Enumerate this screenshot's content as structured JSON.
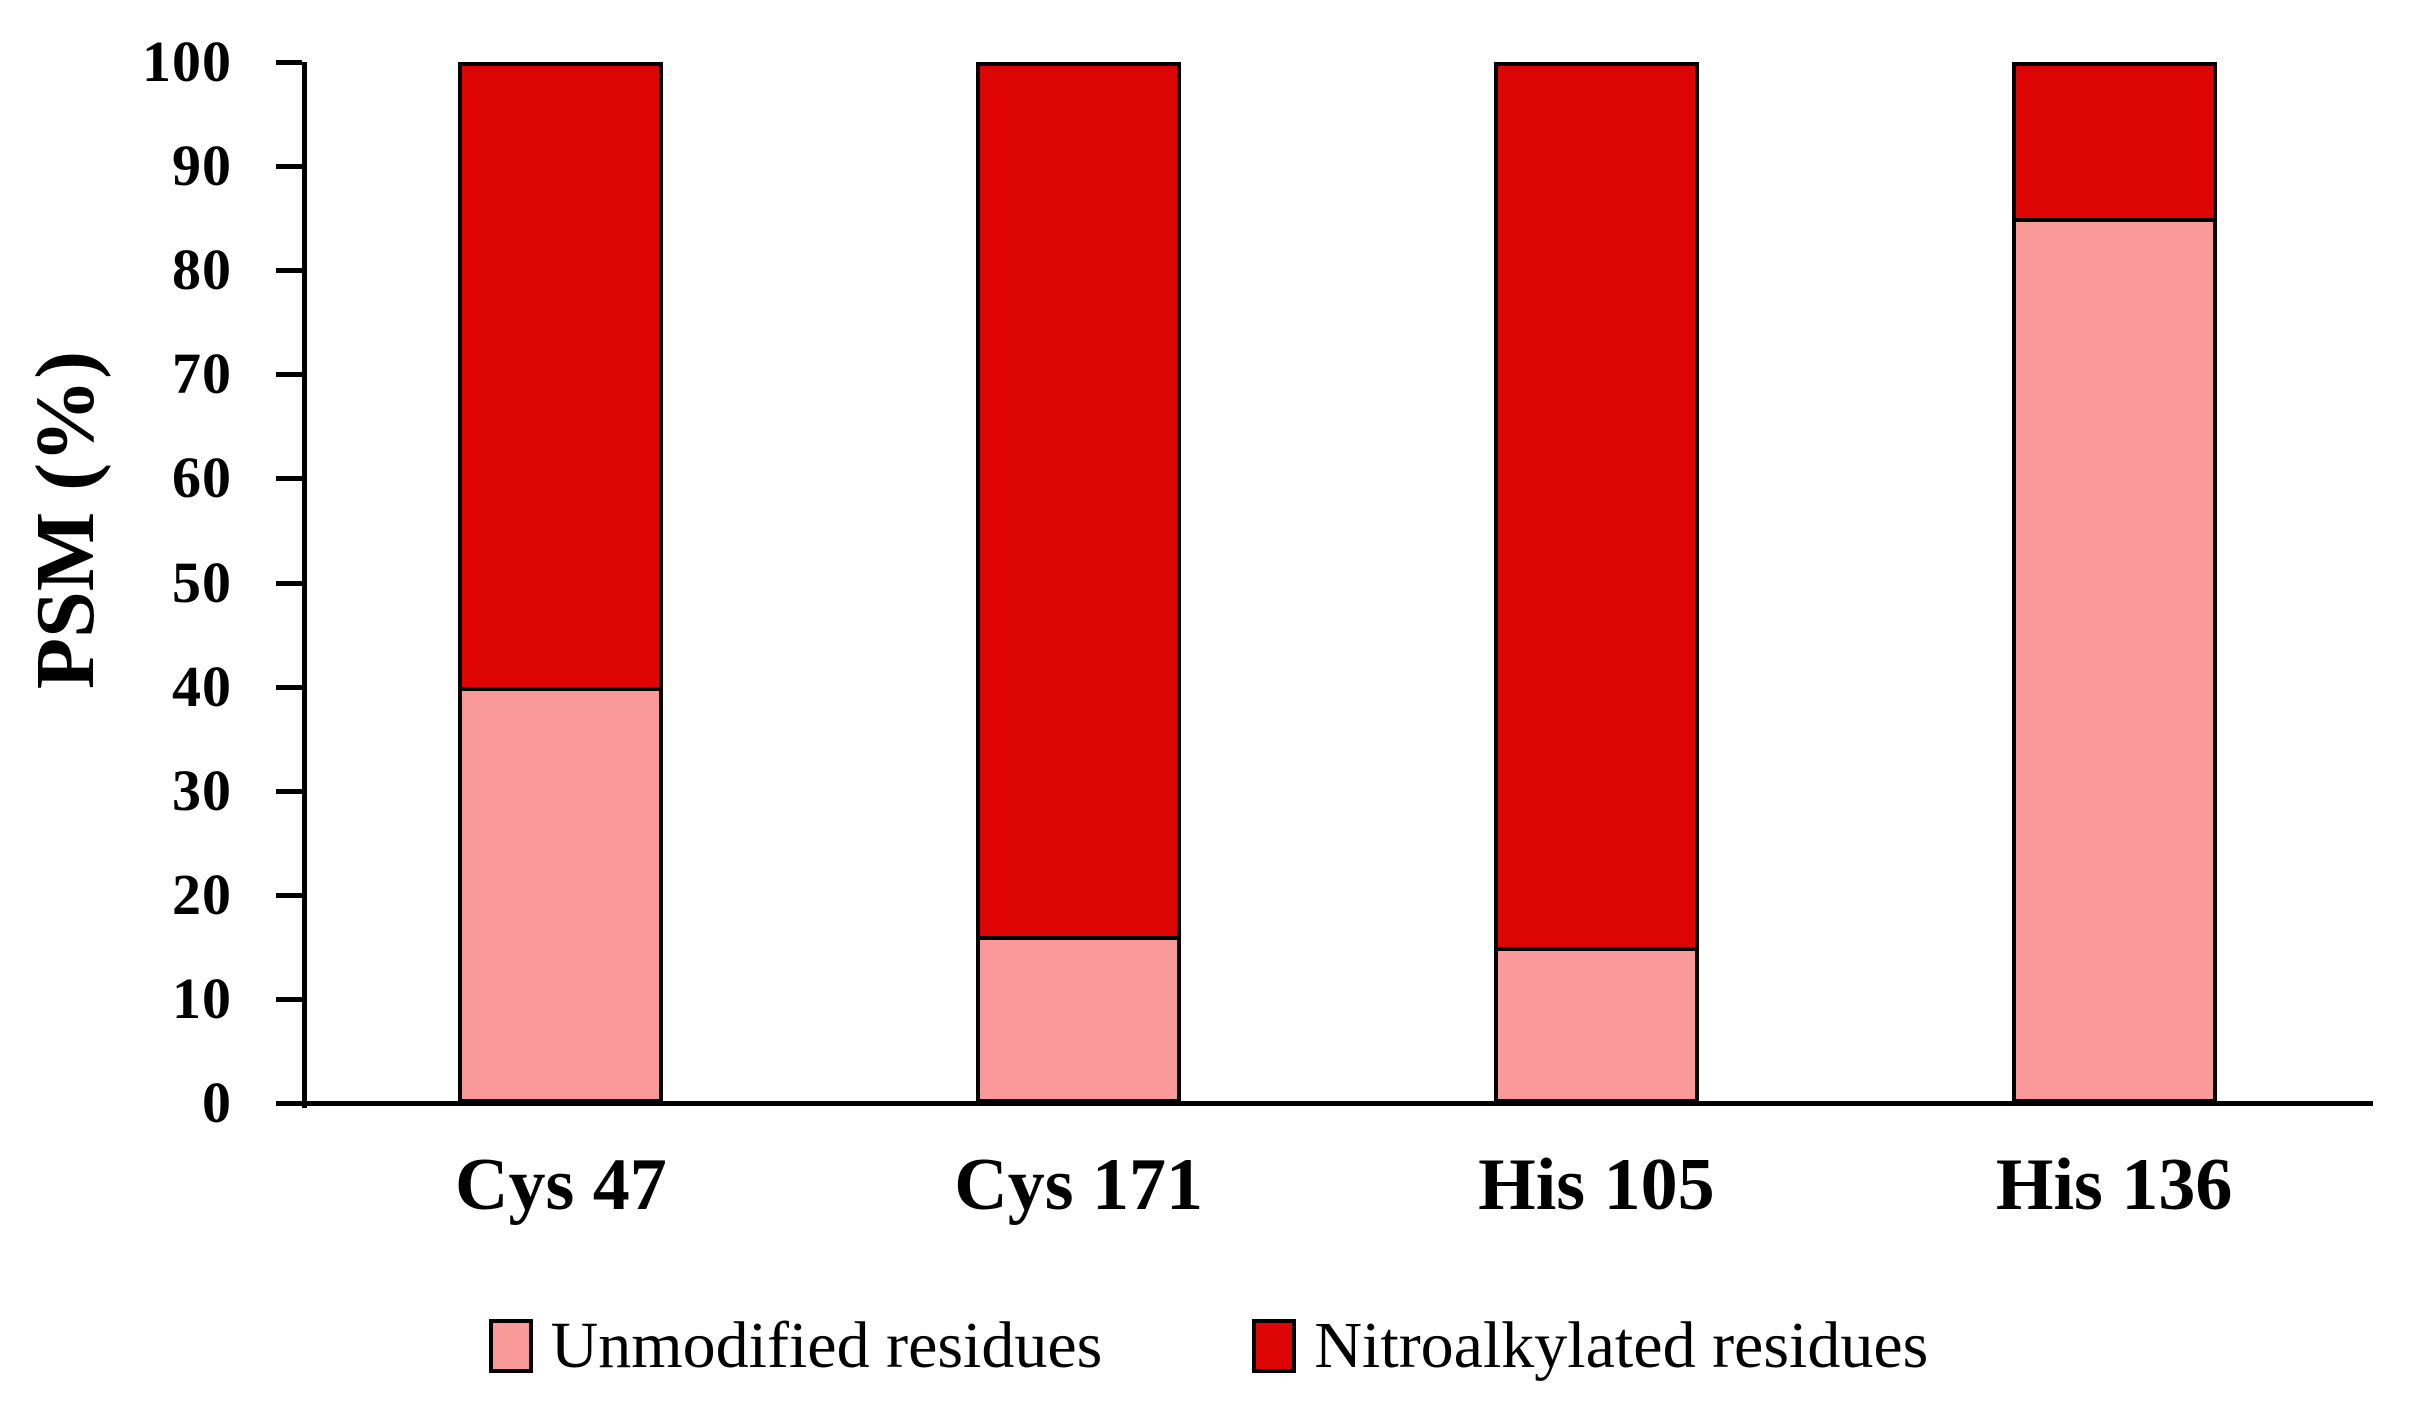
{
  "colors": {
    "unmodified": "#FA9999",
    "nitroalkylated": "#DD0404",
    "axis": "#000000",
    "background": "#FFFFFF"
  },
  "chart_data": {
    "type": "bar",
    "stacked": true,
    "title": "",
    "xlabel": "",
    "ylabel": "PSM (%)",
    "categories": [
      "Cys 47",
      "Cys 171",
      "His 105",
      "His 136"
    ],
    "series": [
      {
        "name": "Unmodified residues",
        "color_key": "unmodified",
        "values": [
          40,
          16,
          15,
          85
        ]
      },
      {
        "name": "Nitroalkylated residues",
        "color_key": "nitroalkylated",
        "values": [
          60,
          84,
          85,
          15
        ]
      }
    ],
    "ylim": [
      0,
      100
    ],
    "yticks": [
      0,
      10,
      20,
      30,
      40,
      50,
      60,
      70,
      80,
      90,
      100
    ],
    "grid": false,
    "legend_position": "bottom"
  }
}
